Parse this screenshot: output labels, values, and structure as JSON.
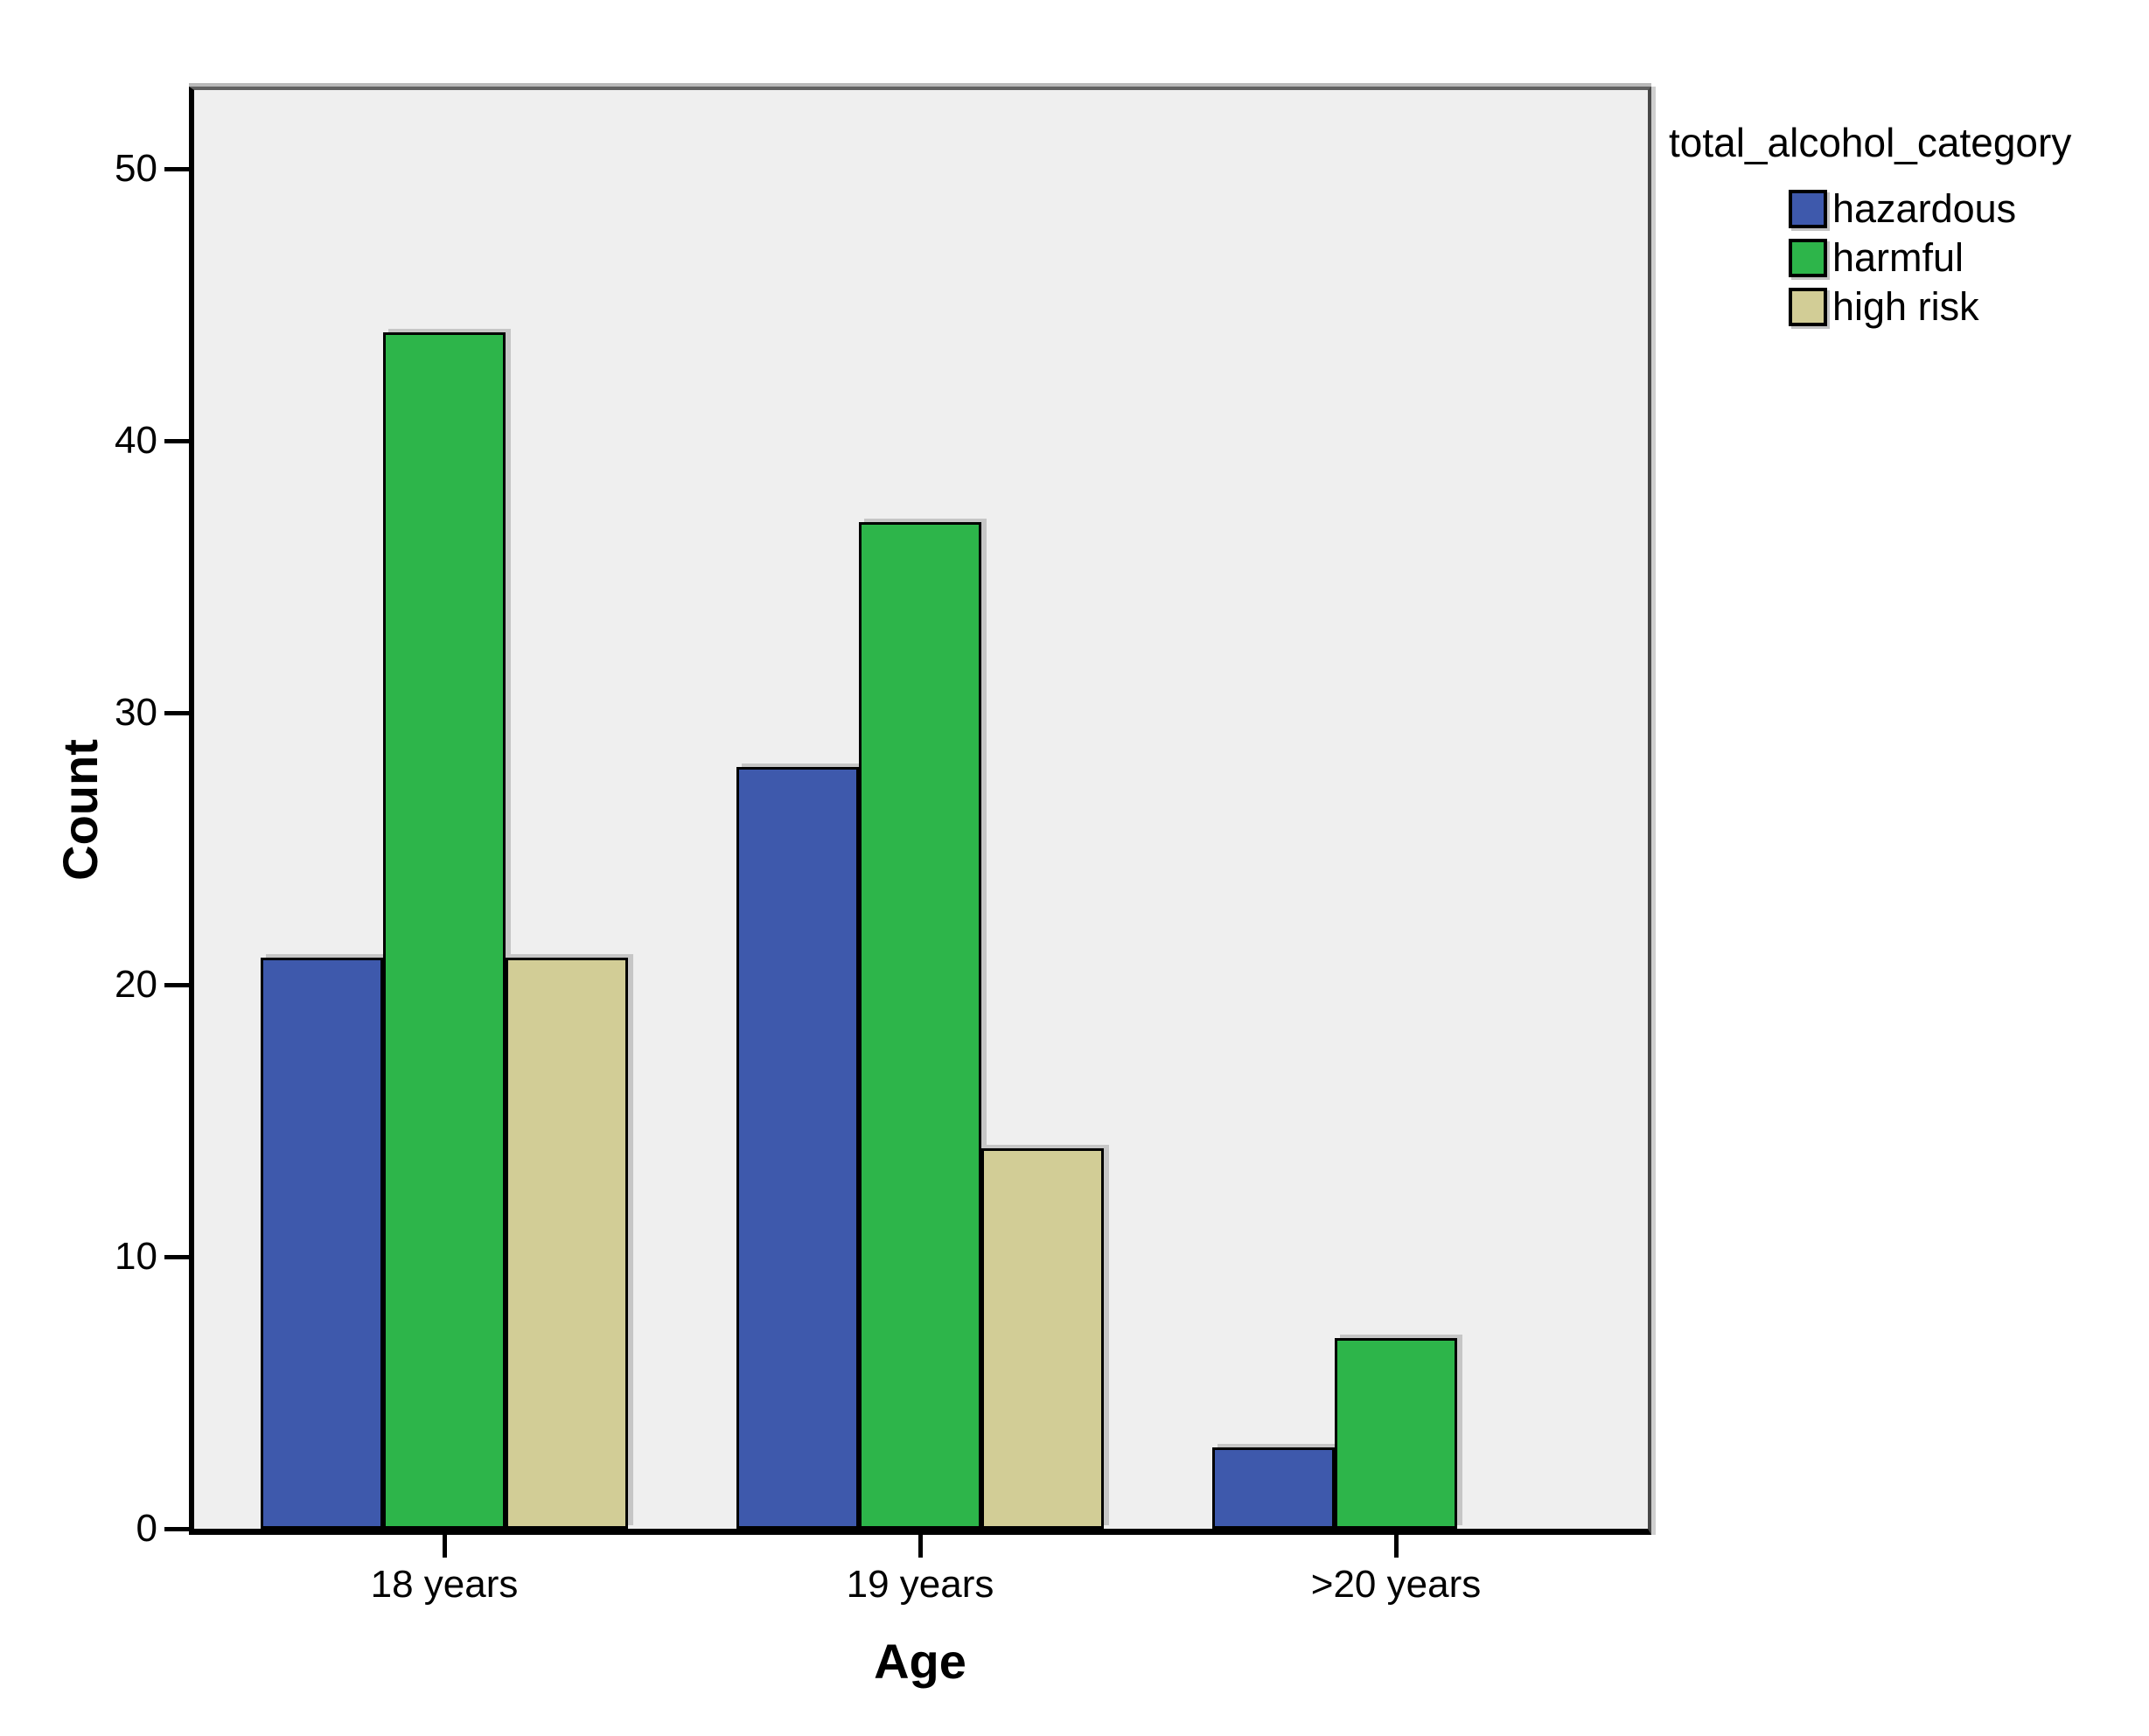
{
  "chart_data": {
    "type": "bar",
    "title": "",
    "xlabel": "Age",
    "ylabel": "Count",
    "categories": [
      "18 years",
      "19 years",
      ">20 years"
    ],
    "series": [
      {
        "name": "hazardous",
        "color": "#3E59AC",
        "values": [
          21,
          28,
          3
        ]
      },
      {
        "name": "harmful",
        "color": "#2DB54A",
        "values": [
          44,
          37,
          7
        ]
      },
      {
        "name": "high risk",
        "color": "#D2CD96",
        "values": [
          21,
          14,
          0
        ]
      }
    ],
    "yticks": [
      0,
      10,
      20,
      30,
      40,
      50
    ],
    "ylim": [
      0,
      53
    ],
    "legend_title": "total_alcohol_category",
    "legend_position": "right",
    "grid": false,
    "colors": {
      "plot_background": "#EFEFEF",
      "bar_border": "#000000",
      "page_background": "#FFFFFF"
    }
  }
}
